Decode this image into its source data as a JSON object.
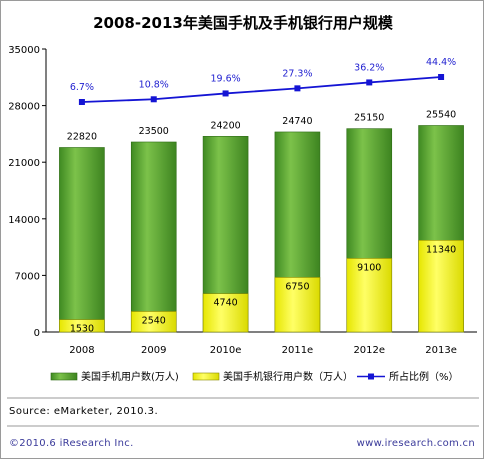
{
  "chart_data": {
    "type": "bar",
    "title": "2008-2013年美国手机及手机银行用户规模",
    "categories": [
      "2008",
      "2009",
      "2010e",
      "2011e",
      "2012e",
      "2013e"
    ],
    "ylim": [
      0,
      35000
    ],
    "yticks": [
      "35000",
      "28000",
      "21000",
      "14000",
      "7000",
      "0"
    ],
    "grid": false,
    "legend_position": "bottom",
    "series": [
      {
        "name": "美国手机用户数(万人)",
        "type": "bar",
        "color": "#4f9a2e",
        "values": [
          22820,
          23500,
          24200,
          24740,
          25150,
          25540
        ],
        "labels": [
          "22820",
          "23500",
          "24200",
          "24740",
          "25150",
          "25540"
        ]
      },
      {
        "name": "美国手机银行用户数（万人）",
        "type": "bar",
        "color": "#f2f21a",
        "values": [
          1530,
          2540,
          4740,
          6750,
          9100,
          11340
        ],
        "labels": [
          "1530",
          "2540",
          "4740",
          "6750",
          "9100",
          "11340"
        ]
      },
      {
        "name": "所占比例（%）",
        "type": "line",
        "color": "#1414d4",
        "values": [
          6.7,
          10.8,
          19.6,
          27.3,
          36.2,
          44.4
        ],
        "labels": [
          "6.7%",
          "10.8%",
          "19.6%",
          "27.3%",
          "36.2%",
          "44.4%"
        ]
      }
    ]
  },
  "source": "Source: eMarketer, 2010.3.",
  "footer": {
    "left": "©2010.6 iResearch Inc.",
    "right": "www.iresearch.com.cn"
  }
}
